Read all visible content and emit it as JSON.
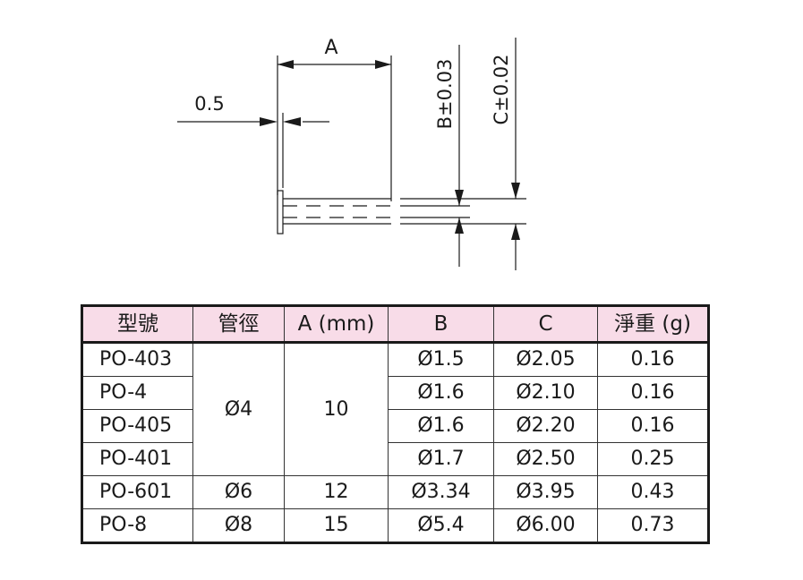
{
  "drawing": {
    "label_a": "A",
    "label_flange": "0.5",
    "label_b": "B±0.03",
    "label_c": "C±0.02"
  },
  "table": {
    "headers": [
      "型號",
      "管徑",
      "A (mm)",
      "B",
      "C",
      "淨重 (g)"
    ],
    "rows": [
      {
        "model": "PO-403",
        "tube": "Ø4",
        "a": "10",
        "b": "Ø1.5",
        "c": "Ø2.05",
        "weight": "0.16"
      },
      {
        "model": "PO-4",
        "b": "Ø1.6",
        "c": "Ø2.10",
        "weight": "0.16"
      },
      {
        "model": "PO-405",
        "b": "Ø1.6",
        "c": "Ø2.20",
        "weight": "0.16"
      },
      {
        "model": "PO-401",
        "b": "Ø1.7",
        "c": "Ø2.50",
        "weight": "0.25"
      },
      {
        "model": "PO-601",
        "tube": "Ø6",
        "a": "12",
        "b": "Ø3.34",
        "c": "Ø3.95",
        "weight": "0.43"
      },
      {
        "model": "PO-8",
        "tube": "Ø8",
        "a": "15",
        "b": "Ø5.4",
        "c": "Ø6.00",
        "weight": "0.73"
      }
    ]
  }
}
